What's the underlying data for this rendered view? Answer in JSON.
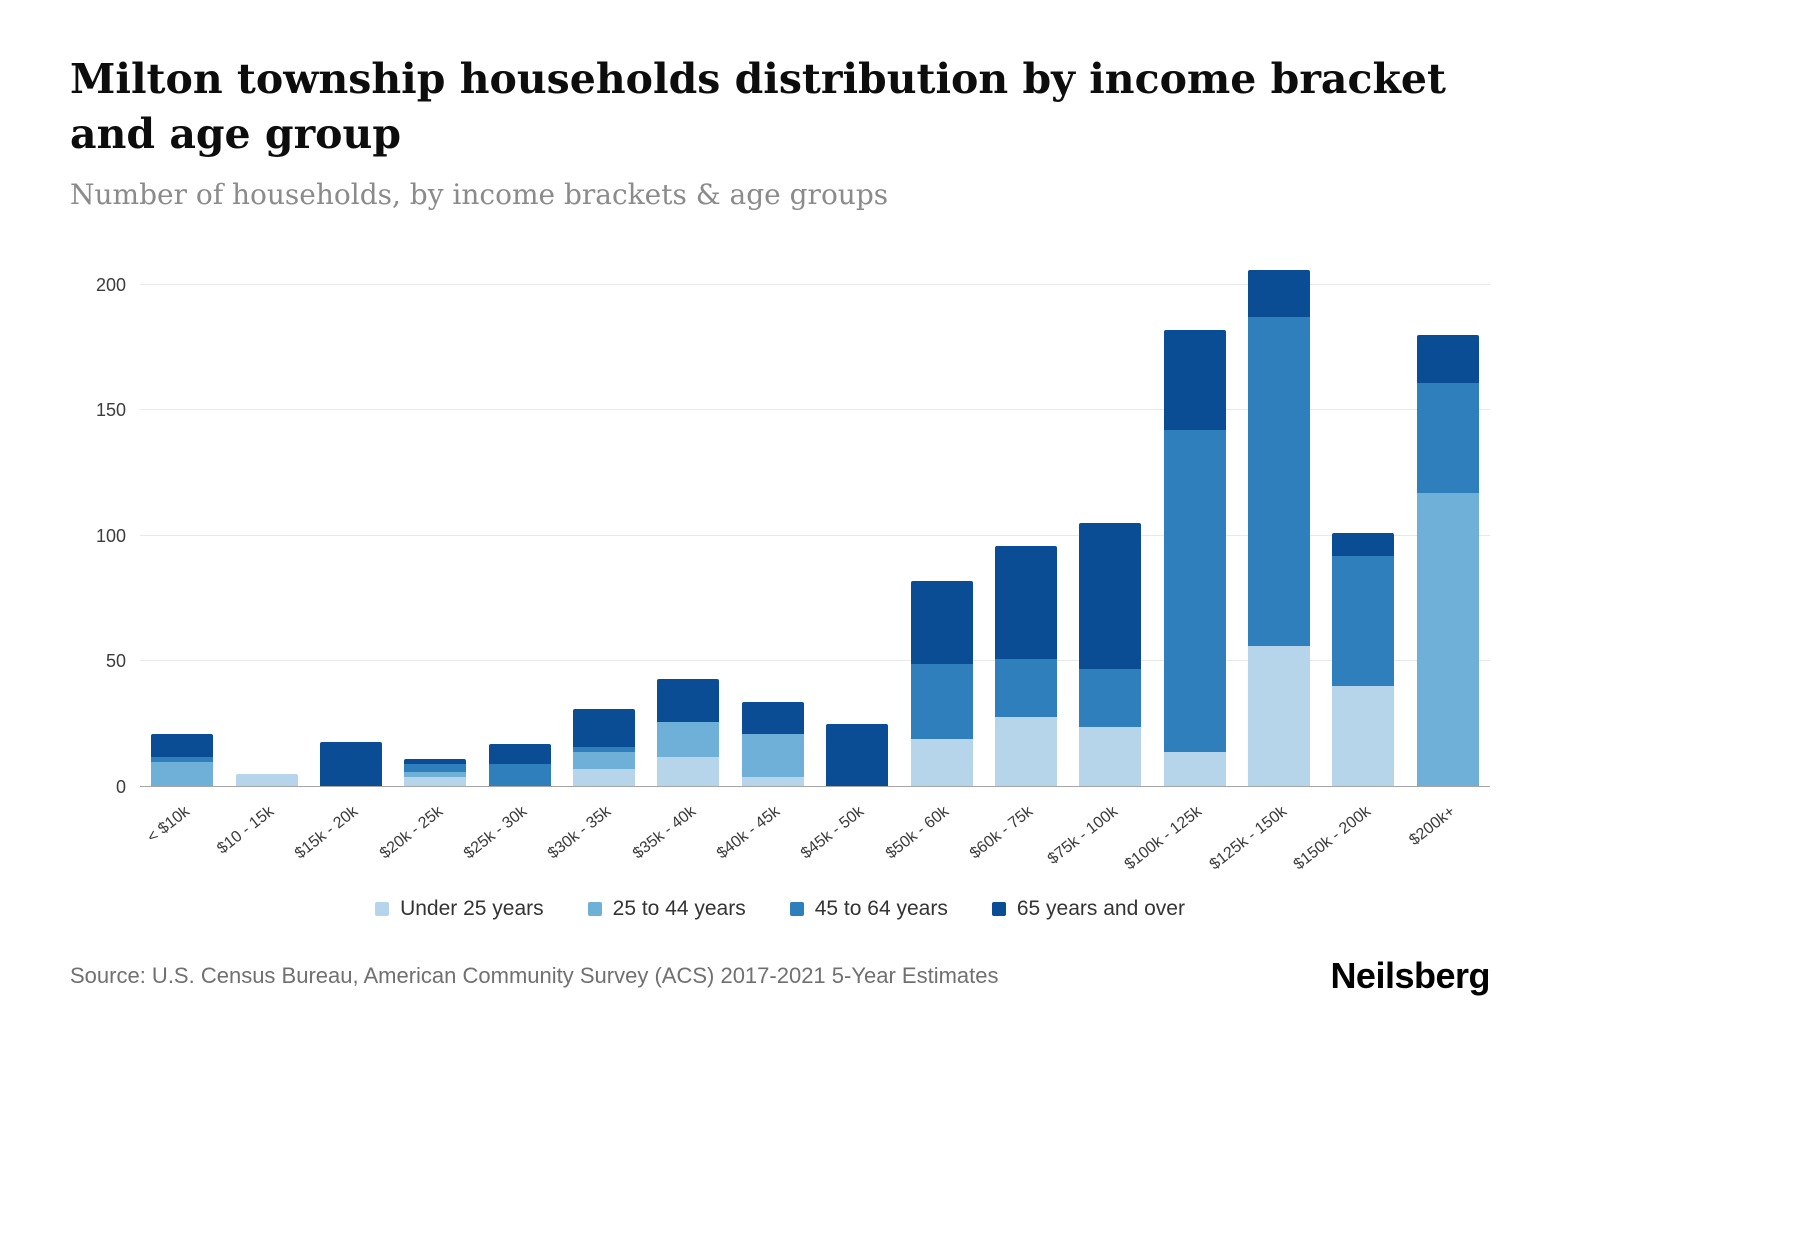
{
  "header": {
    "title": "Milton township households distribution by income bracket and age group",
    "subtitle": "Number of households, by income brackets & age groups"
  },
  "chart_data": {
    "type": "bar",
    "stacked": true,
    "title": "Milton township households distribution by income bracket and age group",
    "subtitle": "Number of households, by income brackets & age groups",
    "categories": [
      "< $10k",
      "$10 - 15k",
      "$15k - 20k",
      "$20k - 25k",
      "$25k - 30k",
      "$30k - 35k",
      "$35k - 40k",
      "$40k - 45k",
      "$45k - 50k",
      "$50k - 60k",
      "$60k - 75k",
      "$75k - 100k",
      "$100k - 125k",
      "$125k - 150k",
      "$150k - 200k",
      "$200k+"
    ],
    "series": [
      {
        "name": "Under 25 years",
        "color": "#b7d5ea",
        "values": [
          0,
          5,
          0,
          4,
          0,
          7,
          12,
          4,
          0,
          19,
          28,
          24,
          14,
          56,
          40,
          0
        ]
      },
      {
        "name": "25 to 44 years",
        "color": "#6fb0d8",
        "values": [
          10,
          0,
          0,
          2,
          0,
          7,
          14,
          17,
          0,
          0,
          0,
          0,
          0,
          0,
          0,
          117
        ]
      },
      {
        "name": "45 to 64 years",
        "color": "#2f7fbc",
        "values": [
          2,
          0,
          0,
          3,
          9,
          2,
          0,
          0,
          0,
          30,
          23,
          23,
          128,
          131,
          52,
          44
        ]
      },
      {
        "name": "65 years and over",
        "color": "#0b4d94",
        "values": [
          9,
          0,
          18,
          2,
          8,
          15,
          17,
          13,
          25,
          33,
          45,
          58,
          40,
          19,
          9,
          19
        ]
      }
    ],
    "xlabel": "",
    "ylabel": "",
    "yticks": [
      0,
      50,
      100,
      150,
      200
    ],
    "ylim": [
      0,
      215
    ],
    "grid": true,
    "legend_position": "bottom",
    "gridline_color": "#e9e9e9",
    "axis_line_color": "#a6a6a6"
  },
  "footer": {
    "source": "Source: U.S. Census Bureau, American Community Survey (ACS) 2017-2021 5-Year Estimates",
    "brand": "Neilsberg"
  }
}
